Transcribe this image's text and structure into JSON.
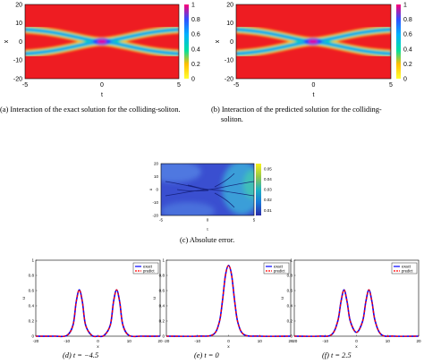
{
  "panel_a": {
    "caption": "(a)  Interaction of the exact solution for the colliding-soliton.",
    "xlabel": "t",
    "ylabel": "x",
    "xticks": [
      "-5",
      "0",
      "5"
    ],
    "yticks": [
      "20",
      "10",
      "0",
      "-10",
      "-20"
    ],
    "cbar_ticks": [
      "1",
      "0.8",
      "0.6",
      "0.4",
      "0.2",
      "0"
    ]
  },
  "panel_b": {
    "caption_line1": "(b)  Interaction of the predicted solution for the colliding-",
    "caption_line2": "soliton.",
    "xlabel": "t",
    "ylabel": "x",
    "xticks": [
      "-5",
      "0",
      "5"
    ],
    "yticks": [
      "20",
      "10",
      "0",
      "-10",
      "-20"
    ],
    "cbar_ticks": [
      "1",
      "0.8",
      "0.6",
      "0.4",
      "0.2",
      "0"
    ]
  },
  "panel_c": {
    "caption": "(c)  Absolute error.",
    "xlabel": "t",
    "ylabel": "x",
    "xticks": [
      "-5",
      "0",
      "5"
    ],
    "yticks": [
      "20",
      "10",
      "0",
      "-10",
      "-20"
    ],
    "cbar_ticks": [
      "0.05",
      "0.04",
      "0.03",
      "0.02",
      "0.01"
    ]
  },
  "line_panels": [
    {
      "caption": "(d)  t = −4.5",
      "xlabel": "x",
      "ylabel": "u",
      "xticks": [
        "-20",
        "-10",
        "0",
        "10",
        "20"
      ],
      "yticks": [
        "1",
        "0.8",
        "0.6",
        "0.4",
        "0.2",
        "0"
      ],
      "legend": [
        "exact",
        "predict"
      ]
    },
    {
      "caption": "(e)  t = 0",
      "xlabel": "x",
      "ylabel": "u",
      "xticks": [
        "-20",
        "-10",
        "0",
        "10",
        "20"
      ],
      "yticks": [
        "1",
        "0.8",
        "0.6",
        "0.4",
        "0.2",
        "0"
      ],
      "legend": [
        "exact",
        "predict"
      ]
    },
    {
      "caption": "(f)  t = 2.5",
      "xlabel": "x",
      "ylabel": "u",
      "xticks": [
        "-20",
        "-10",
        "0",
        "10",
        "20"
      ],
      "yticks": [
        "1",
        "0.8",
        "0.6",
        "0.4",
        "0.2",
        "0"
      ],
      "legend": [
        "exact",
        "predict"
      ]
    }
  ],
  "chart_data": [
    {
      "type": "heatmap",
      "xlim": [
        -5,
        5
      ],
      "ylim": [
        -20,
        20
      ],
      "clim": [
        0,
        1
      ],
      "colormap": "jet",
      "description_values": {
        "peak_at_collision": 0.95
      }
    },
    {
      "type": "heatmap",
      "xlim": [
        -5,
        5
      ],
      "ylim": [
        -20,
        20
      ],
      "clim": [
        0,
        1
      ],
      "colormap": "jet",
      "description_values": {
        "peak_at_collision": 0.95
      }
    },
    {
      "type": "heatmap",
      "xlim": [
        -5,
        5
      ],
      "ylim": [
        -20,
        20
      ],
      "clim": [
        0.005,
        0.055
      ],
      "colormap": "parula"
    },
    {
      "type": "line",
      "xlim": [
        -20,
        20
      ],
      "ylim": [
        0,
        1
      ],
      "series": [
        {
          "name": "exact",
          "color": "#0000ff",
          "style": "solid",
          "x": [
            -20,
            -14,
            -10,
            -8,
            -7,
            -6,
            -5,
            -4,
            -2,
            0,
            2,
            4,
            5,
            6,
            7,
            8,
            10,
            14,
            20
          ],
          "y": [
            0,
            0,
            0.01,
            0.15,
            0.45,
            0.61,
            0.45,
            0.15,
            0.01,
            0,
            0.01,
            0.15,
            0.45,
            0.61,
            0.45,
            0.15,
            0.01,
            0,
            0
          ]
        },
        {
          "name": "predict",
          "color": "#ff0000",
          "style": "dashed",
          "x": [
            -20,
            -14,
            -10,
            -8,
            -7,
            -6,
            -5,
            -4,
            -2,
            0,
            2,
            4,
            5,
            6,
            7,
            8,
            10,
            14,
            20
          ],
          "y": [
            0,
            0,
            0.01,
            0.15,
            0.45,
            0.61,
            0.45,
            0.15,
            0.01,
            0,
            0.01,
            0.15,
            0.45,
            0.61,
            0.45,
            0.15,
            0.01,
            0,
            0
          ]
        }
      ]
    },
    {
      "type": "line",
      "xlim": [
        -20,
        20
      ],
      "ylim": [
        0,
        1
      ],
      "series": [
        {
          "name": "exact",
          "color": "#0000ff",
          "style": "solid",
          "x": [
            -20,
            -10,
            -5,
            -3,
            -2,
            -1,
            0,
            1,
            2,
            3,
            5,
            10,
            20
          ],
          "y": [
            0,
            0,
            0.02,
            0.18,
            0.45,
            0.8,
            0.93,
            0.8,
            0.45,
            0.18,
            0.02,
            0,
            0
          ]
        },
        {
          "name": "predict",
          "color": "#ff0000",
          "style": "dashed",
          "x": [
            -20,
            -10,
            -5,
            -3,
            -2,
            -1,
            0,
            1,
            2,
            3,
            5,
            10,
            20
          ],
          "y": [
            0,
            0,
            0.02,
            0.18,
            0.45,
            0.8,
            0.93,
            0.8,
            0.45,
            0.18,
            0.02,
            0,
            0
          ]
        }
      ]
    },
    {
      "type": "line",
      "xlim": [
        -20,
        20
      ],
      "ylim": [
        0,
        1
      ],
      "series": [
        {
          "name": "exact",
          "color": "#0000ff",
          "style": "solid",
          "x": [
            -20,
            -12,
            -8,
            -6,
            -5,
            -4,
            -3,
            -2,
            0,
            2,
            3,
            4,
            5,
            6,
            8,
            12,
            20
          ],
          "y": [
            0,
            0,
            0.02,
            0.2,
            0.45,
            0.61,
            0.45,
            0.2,
            0.05,
            0.2,
            0.45,
            0.61,
            0.45,
            0.2,
            0.02,
            0,
            0
          ]
        },
        {
          "name": "predict",
          "color": "#ff0000",
          "style": "dashed",
          "x": [
            -20,
            -12,
            -8,
            -6,
            -5,
            -4,
            -3,
            -2,
            0,
            2,
            3,
            4,
            5,
            6,
            8,
            12,
            20
          ],
          "y": [
            0,
            0,
            0.02,
            0.2,
            0.45,
            0.61,
            0.45,
            0.2,
            0.05,
            0.2,
            0.45,
            0.61,
            0.45,
            0.2,
            0.02,
            0,
            0
          ]
        }
      ]
    }
  ]
}
